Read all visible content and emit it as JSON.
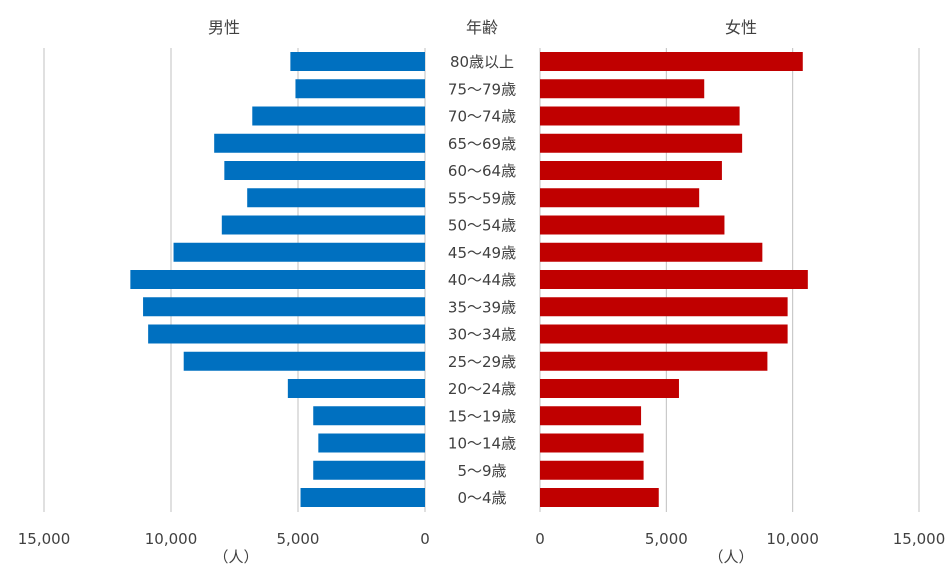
{
  "chart_data": {
    "type": "bar",
    "title_age": "年齢",
    "male_label": "男性",
    "female_label": "女性",
    "unit_label": "（人）",
    "categories": [
      "80歳以上",
      "75〜79歳",
      "70〜74歳",
      "65〜69歳",
      "60〜64歳",
      "55〜59歳",
      "50〜54歳",
      "45〜49歳",
      "40〜44歳",
      "35〜39歳",
      "30〜34歳",
      "25〜29歳",
      "20〜24歳",
      "15〜19歳",
      "10〜14歳",
      "5〜9歳",
      "0〜4歳"
    ],
    "series": [
      {
        "name": "男性",
        "color": "#0070c0",
        "values": [
          5300,
          5100,
          6800,
          8300,
          7900,
          7000,
          8000,
          9900,
          11600,
          11100,
          10900,
          9500,
          5400,
          4400,
          4200,
          4400,
          4900
        ]
      },
      {
        "name": "女性",
        "color": "#c00000",
        "values": [
          10400,
          6500,
          7900,
          8000,
          7200,
          6300,
          7300,
          8800,
          10600,
          9800,
          9800,
          9000,
          5500,
          4000,
          4100,
          4100,
          4700
        ]
      }
    ],
    "xlim": [
      0,
      15000
    ],
    "xticks_male": [
      "15,000",
      "10,000",
      "5,000",
      "0"
    ],
    "xticks_female": [
      "0",
      "5,000",
      "10,000",
      "15,000"
    ],
    "tick_values": [
      0,
      5000,
      10000,
      15000
    ],
    "grid": true
  }
}
